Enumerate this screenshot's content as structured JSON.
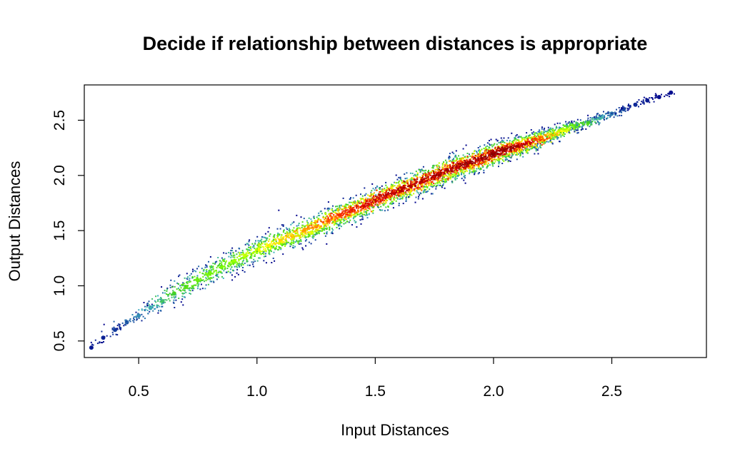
{
  "chart_data": {
    "type": "scatter",
    "title": "Decide if relationship between distances is appropriate",
    "xlabel": "Input Distances",
    "ylabel": "Output Distances",
    "xlim": [
      0.27,
      2.9
    ],
    "ylim": [
      0.35,
      2.82
    ],
    "x_ticks": [
      0.5,
      1.0,
      1.5,
      2.0,
      2.5
    ],
    "x_tick_labels": [
      "0.5",
      "1.0",
      "1.5",
      "2.0",
      "2.5"
    ],
    "y_ticks": [
      0.5,
      1.0,
      1.5,
      2.0,
      2.5
    ],
    "y_tick_labels": [
      "0.5",
      "1.0",
      "1.5",
      "2.0",
      "2.5"
    ],
    "grid": false,
    "legend": "none",
    "color_scale": "density",
    "color_ramp": [
      "#00008b",
      "#40b0c0",
      "#40d020",
      "#80ff00",
      "#ffff00",
      "#ffa500",
      "#ff3000",
      "#cc0000",
      "#8b0000"
    ],
    "x": [
      0.3,
      0.35,
      0.4,
      0.45,
      0.5,
      0.55,
      0.6,
      0.65,
      0.7,
      0.75,
      0.8,
      0.85,
      0.9,
      0.95,
      1.0,
      1.05,
      1.1,
      1.15,
      1.2,
      1.25,
      1.3,
      1.35,
      1.4,
      1.45,
      1.5,
      1.55,
      1.6,
      1.65,
      1.7,
      1.75,
      1.8,
      1.85,
      1.9,
      1.95,
      2.0,
      2.05,
      2.1,
      2.15,
      2.2,
      2.25,
      2.3,
      2.35,
      2.4,
      2.45,
      2.5,
      2.55,
      2.6,
      2.65,
      2.7,
      2.75
    ],
    "y": [
      0.44,
      0.53,
      0.6,
      0.67,
      0.73,
      0.8,
      0.86,
      0.93,
      0.99,
      1.05,
      1.11,
      1.17,
      1.22,
      1.27,
      1.32,
      1.36,
      1.41,
      1.45,
      1.5,
      1.54,
      1.59,
      1.64,
      1.68,
      1.72,
      1.77,
      1.82,
      1.86,
      1.9,
      1.95,
      1.99,
      2.04,
      2.08,
      2.11,
      2.15,
      2.19,
      2.23,
      2.26,
      2.29,
      2.33,
      2.37,
      2.41,
      2.45,
      2.48,
      2.52,
      2.56,
      2.6,
      2.64,
      2.68,
      2.71,
      2.75
    ],
    "density": [
      0.02,
      0.03,
      0.05,
      0.07,
      0.1,
      0.14,
      0.2,
      0.26,
      0.3,
      0.33,
      0.35,
      0.37,
      0.4,
      0.44,
      0.48,
      0.52,
      0.56,
      0.6,
      0.64,
      0.68,
      0.72,
      0.76,
      0.8,
      0.84,
      0.87,
      0.9,
      0.92,
      0.93,
      0.94,
      0.95,
      0.96,
      0.97,
      0.98,
      0.99,
      1.0,
      0.98,
      0.95,
      0.88,
      0.75,
      0.62,
      0.48,
      0.35,
      0.25,
      0.15,
      0.09,
      0.05,
      0.03,
      0.02,
      0.01,
      0.01
    ],
    "spread": [
      0.02,
      0.03,
      0.04,
      0.05,
      0.06,
      0.07,
      0.08,
      0.09,
      0.1,
      0.1,
      0.1,
      0.1,
      0.1,
      0.1,
      0.1,
      0.1,
      0.1,
      0.1,
      0.1,
      0.1,
      0.1,
      0.1,
      0.1,
      0.1,
      0.1,
      0.1,
      0.1,
      0.1,
      0.1,
      0.1,
      0.1,
      0.1,
      0.1,
      0.1,
      0.1,
      0.09,
      0.09,
      0.08,
      0.07,
      0.06,
      0.05,
      0.04,
      0.04,
      0.03,
      0.03,
      0.02,
      0.02,
      0.02,
      0.01,
      0.01
    ]
  }
}
